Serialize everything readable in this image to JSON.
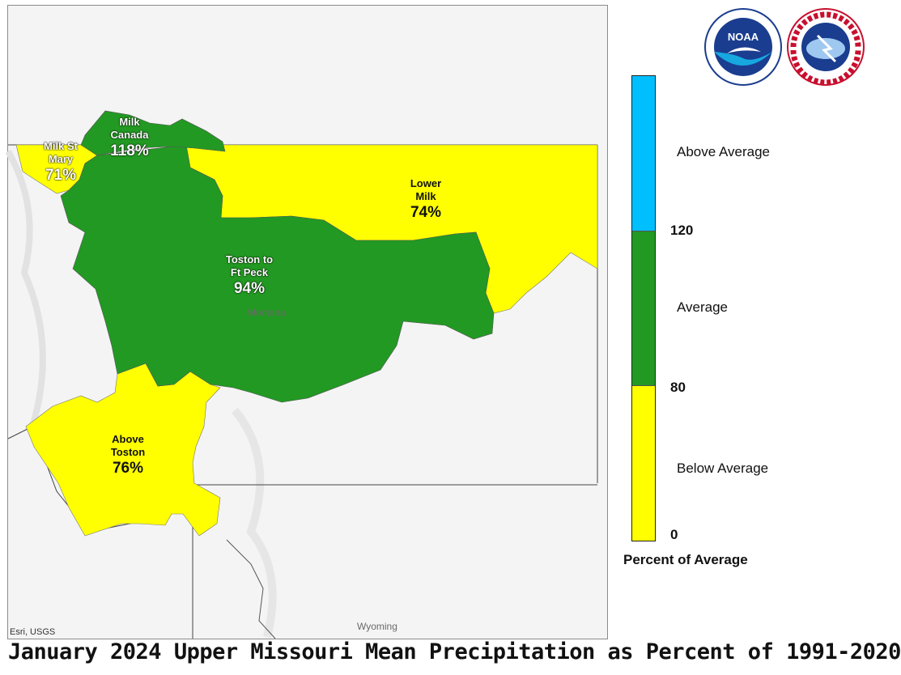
{
  "title": "January 2024 Upper Missouri Mean Precipitation as Percent of 1991-2020",
  "colors": {
    "above_average": "#00bfff",
    "average": "#229922",
    "below_average": "#ffff00",
    "basemap": "#f4f4f4"
  },
  "regions": [
    {
      "id": "milk-st-mary",
      "name": "Milk St\nMary",
      "percent": "71%",
      "category": "below_average",
      "percent_value": 71
    },
    {
      "id": "milk-canada",
      "name": "Milk\nCanada",
      "percent": "118%",
      "category": "average",
      "percent_value": 118
    },
    {
      "id": "lower-milk",
      "name": "Lower\nMilk",
      "percent": "74%",
      "category": "below_average",
      "percent_value": 74
    },
    {
      "id": "toston-to-ft-peck",
      "name": "Toston to\nFt Peck",
      "percent": "94%",
      "category": "average",
      "percent_value": 94
    },
    {
      "id": "above-toston",
      "name": "Above\nToston",
      "percent": "76%",
      "category": "below_average",
      "percent_value": 76
    }
  ],
  "places": {
    "montana": "Montana",
    "wyoming": "Wyoming"
  },
  "attribution": "Esri, USGS",
  "legend": {
    "title": "Percent of Average",
    "categories": [
      "Above Average",
      "Average",
      "Below Average"
    ],
    "ticks": [
      "120",
      "80",
      "0"
    ]
  },
  "logos": {
    "noaa": "NOAA",
    "nws": "NATIONAL WEATHER SERVICE"
  }
}
